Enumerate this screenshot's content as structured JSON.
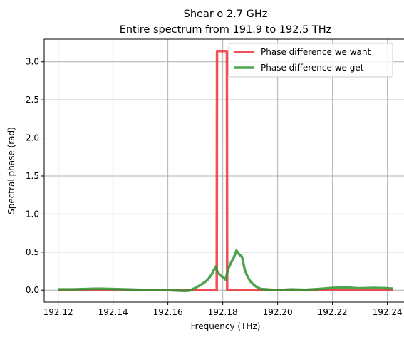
{
  "chart_data": {
    "type": "line",
    "title": "Shear o 2.7 GHz",
    "subtitle": "Entire spectrum from 191.9 to 192.5 THz",
    "xlabel": "Frequency (THz)",
    "ylabel": "Spectral phase (rad)",
    "xlim": [
      192.1149,
      192.2471
    ],
    "ylim": [
      -0.157,
      3.297
    ],
    "grid": true,
    "legend_position": "upper right",
    "x_ticks": [
      192.12,
      192.14,
      192.16,
      192.18,
      192.2,
      192.22,
      192.24
    ],
    "x_tick_labels": [
      "192.12",
      "192.14",
      "192.16",
      "192.18",
      "192.20",
      "192.22",
      "192.24"
    ],
    "y_ticks": [
      0.0,
      0.5,
      1.0,
      1.5,
      2.0,
      2.5,
      3.0
    ],
    "y_tick_labels": [
      "0.0",
      "0.5",
      "1.0",
      "1.5",
      "2.0",
      "2.5",
      "3.0"
    ],
    "series": [
      {
        "name": "Phase difference we want",
        "color": "#f0333a",
        "x": [
          192.12,
          192.1778,
          192.1779,
          192.1788,
          192.1797,
          192.1806,
          192.1815,
          192.1816,
          192.242
        ],
        "y": [
          0.0,
          0.0,
          3.14,
          3.14,
          3.14,
          3.14,
          3.14,
          0.0,
          0.0
        ]
      },
      {
        "name": "Phase difference we get",
        "color": "#2e9531",
        "x": [
          192.12,
          192.125,
          192.13,
          192.135,
          192.14,
          192.145,
          192.15,
          192.155,
          192.16,
          192.163,
          192.166,
          192.168,
          192.17,
          192.172,
          192.174,
          192.175,
          192.176,
          192.177,
          192.1775,
          192.178,
          192.179,
          192.18,
          192.181,
          192.182,
          192.183,
          192.184,
          192.185,
          192.186,
          192.187,
          192.188,
          192.189,
          192.19,
          192.191,
          192.192,
          192.193,
          192.194,
          192.196,
          192.198,
          192.2,
          192.205,
          192.21,
          192.215,
          192.22,
          192.225,
          192.23,
          192.235,
          192.24,
          192.242
        ],
        "y": [
          0.01,
          0.01,
          0.015,
          0.02,
          0.015,
          0.01,
          0.005,
          0.0,
          0.0,
          -0.005,
          -0.01,
          -0.005,
          0.03,
          0.07,
          0.12,
          0.16,
          0.21,
          0.28,
          0.31,
          0.24,
          0.2,
          0.17,
          0.14,
          0.28,
          0.36,
          0.43,
          0.52,
          0.47,
          0.44,
          0.27,
          0.18,
          0.12,
          0.08,
          0.05,
          0.03,
          0.015,
          0.01,
          0.005,
          0.0,
          0.01,
          0.005,
          0.015,
          0.03,
          0.035,
          0.025,
          0.03,
          0.025,
          0.02
        ]
      }
    ]
  }
}
